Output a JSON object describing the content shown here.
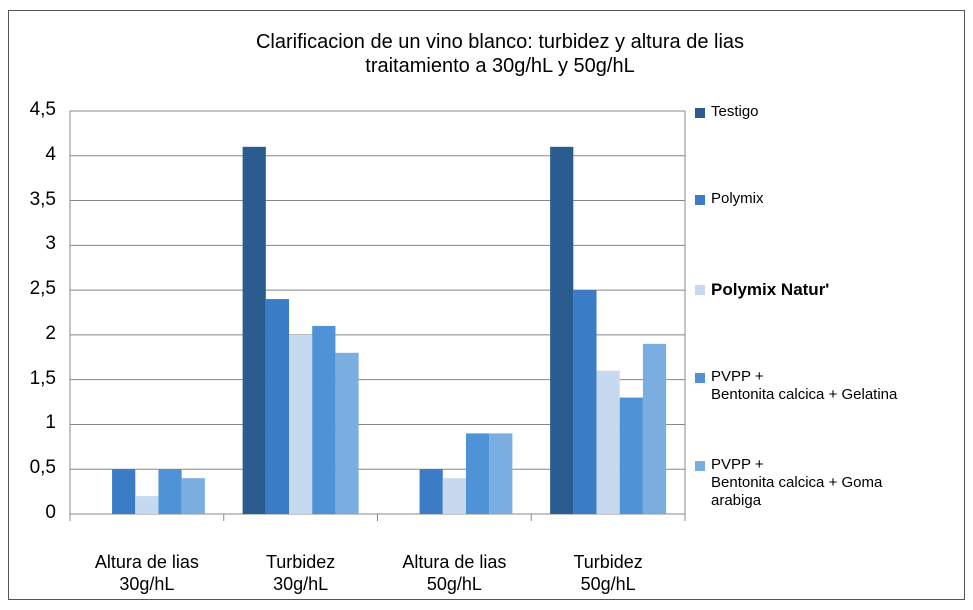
{
  "chart_data": {
    "type": "bar",
    "title": "Clarificacion de un vino blanco: turbidez y altura de lias\ntraitamiento a 30g/hL y 50g/hL",
    "categories": [
      "Altura de lias\n30g/hL",
      "Turbidez\n30g/hL",
      "Altura de lias\n50g/hL",
      "Turbidez\n50g/hL"
    ],
    "series": [
      {
        "name": "Testigo",
        "color": "#2b5c8f",
        "values": [
          0,
          4.1,
          0,
          4.1
        ]
      },
      {
        "name": "Polymix",
        "color": "#3a7dc6",
        "values": [
          0.5,
          2.4,
          0.5,
          2.5
        ]
      },
      {
        "name": "Polymix Natur'",
        "color": "#c6d9ef",
        "values": [
          0.2,
          2.0,
          0.4,
          1.6
        ],
        "bold": true
      },
      {
        "name": "PVPP +\nBentonita calcica + Gelatina",
        "color": "#4f92d6",
        "values": [
          0.5,
          2.1,
          0.9,
          1.3
        ]
      },
      {
        "name": "PVPP +\nBentonita calcica + Goma\narabiga",
        "color": "#7aaee0",
        "values": [
          0.4,
          1.8,
          0.9,
          1.9
        ]
      }
    ],
    "ylim": [
      0,
      4.5
    ],
    "yticks": [
      0,
      {
        "value": 0.5,
        "label": "0,5"
      },
      1,
      {
        "value": 1.5,
        "label": "1,5"
      },
      2,
      {
        "value": 2.5,
        "label": "2,5"
      },
      3,
      {
        "value": 3.5,
        "label": "3,5"
      },
      4,
      {
        "value": 4.5,
        "label": "4,5"
      }
    ],
    "grid": true,
    "legend": "right"
  }
}
